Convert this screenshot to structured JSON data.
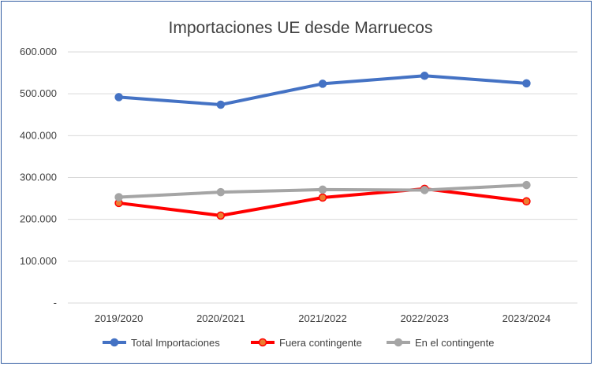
{
  "chart_data": {
    "type": "line",
    "title": "Importaciones UE desde Marruecos",
    "xlabel": "",
    "ylabel": "",
    "categories": [
      "2019/2020",
      "2020/2021",
      "2021/2022",
      "2022/2023",
      "2023/2024"
    ],
    "ylim": [
      0,
      600000
    ],
    "yticks": [
      0,
      100000,
      200000,
      300000,
      400000,
      500000,
      600000
    ],
    "ytick_labels": [
      "-",
      "100.000",
      "200.000",
      "300.000",
      "400.000",
      "500.000",
      "600.000"
    ],
    "grid": true,
    "legend_position": "bottom",
    "series": [
      {
        "name": "Total Importaciones",
        "color": "#4472c4",
        "values": [
          492000,
          474000,
          524000,
          543000,
          525000
        ]
      },
      {
        "name": "Fuera contingente",
        "color": "#ff0000",
        "marker_color": "#ed7d31",
        "values": [
          239000,
          209000,
          252000,
          273000,
          243000
        ]
      },
      {
        "name": "En el contingente",
        "color": "#a5a5a5",
        "values": [
          253000,
          265000,
          271000,
          270000,
          282000
        ]
      }
    ]
  }
}
